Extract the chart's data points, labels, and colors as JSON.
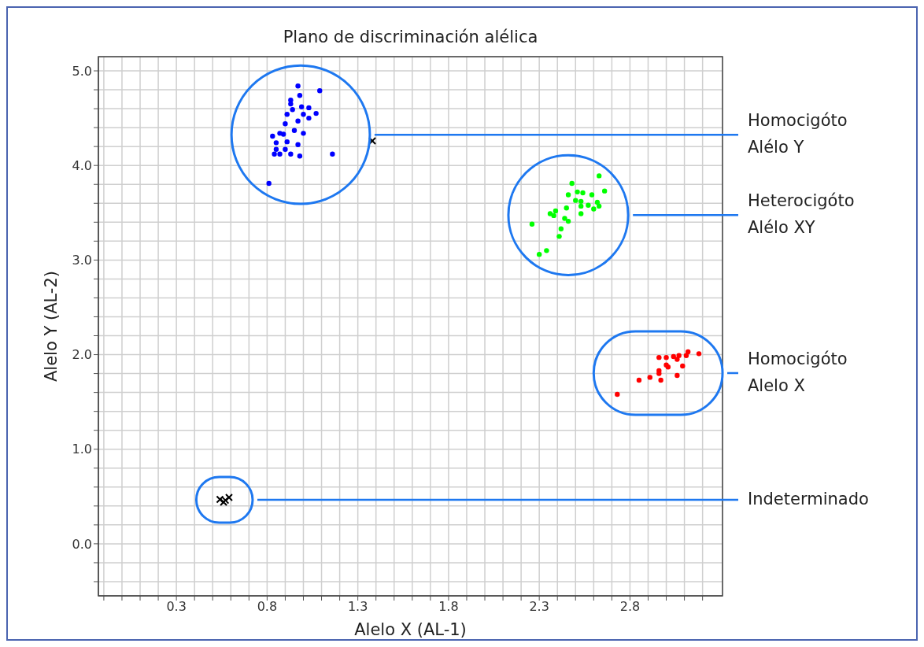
{
  "chart_data": {
    "type": "scatter",
    "title": "Plano de discriminación alélica",
    "xlabel": "Alelo X (AL-1)",
    "ylabel": "Alelo Y (AL-2)",
    "xlim": [
      -0.13,
      3.31
    ],
    "ylim": [
      -0.55,
      5.15
    ],
    "xticks": [
      {
        "value": -0.1,
        "label": null
      },
      {
        "value": 0,
        "label": null
      },
      {
        "value": 0.1,
        "label": null
      },
      {
        "value": 0.2,
        "label": null
      },
      0.3,
      {
        "value": 0.4,
        "label": null
      },
      {
        "value": 0.5,
        "label": null
      },
      {
        "value": 0.6,
        "label": null
      },
      {
        "value": 0.7,
        "label": null
      },
      0.8,
      {
        "value": 0.9,
        "label": null
      },
      {
        "value": 1.0,
        "label": null
      },
      {
        "value": 1.1,
        "label": null
      },
      {
        "value": 1.2,
        "label": null
      },
      1.3,
      {
        "value": 1.4,
        "label": null
      },
      {
        "value": 1.5,
        "label": null
      },
      {
        "value": 1.6,
        "label": null
      },
      {
        "value": 1.7,
        "label": null
      },
      1.8,
      {
        "value": 1.9,
        "label": null
      },
      {
        "value": 2.0,
        "label": null
      },
      {
        "value": 2.1,
        "label": null
      },
      {
        "value": 2.2,
        "label": null
      },
      2.3,
      {
        "value": 2.4,
        "label": null
      },
      {
        "value": 2.5,
        "label": null
      },
      {
        "value": 2.6,
        "label": null
      },
      {
        "value": 2.7,
        "label": null
      },
      2.8,
      {
        "value": 2.9,
        "label": null
      },
      {
        "value": 3.0,
        "label": null
      },
      {
        "value": 3.1,
        "label": null
      },
      {
        "value": 3.2,
        "label": null
      }
    ],
    "yticks": [
      {
        "value": -0.4,
        "label": null
      },
      {
        "value": -0.2,
        "label": null
      },
      {
        "value": 0,
        "label": "0.0"
      },
      {
        "value": 0.2,
        "label": null
      },
      {
        "value": 0.4,
        "label": null
      },
      {
        "value": 0.6,
        "label": null
      },
      {
        "value": 0.8,
        "label": null
      },
      {
        "value": 1,
        "label": "1.0"
      },
      {
        "value": 1.2,
        "label": null
      },
      {
        "value": 1.4,
        "label": null
      },
      {
        "value": 1.6,
        "label": null
      },
      {
        "value": 1.8,
        "label": null
      },
      {
        "value": 2,
        "label": "2.0"
      },
      {
        "value": 2.2,
        "label": null
      },
      {
        "value": 2.4,
        "label": null
      },
      {
        "value": 2.6,
        "label": null
      },
      {
        "value": 2.8,
        "label": null
      },
      {
        "value": 3,
        "label": "3.0"
      },
      {
        "value": 3.2,
        "label": null
      },
      {
        "value": 3.4,
        "label": null
      },
      {
        "value": 3.6,
        "label": null
      },
      {
        "value": 3.8,
        "label": null
      },
      {
        "value": 4,
        "label": "4.0"
      },
      {
        "value": 4.2,
        "label": null
      },
      {
        "value": 4.4,
        "label": null
      },
      {
        "value": 4.6,
        "label": null
      },
      {
        "value": 4.8,
        "label": null
      },
      {
        "value": 5,
        "label": "5.0"
      }
    ],
    "grid": true,
    "series": [
      {
        "color": "#0000ff",
        "marker": "circle",
        "x": [
          0.97,
          1.09,
          0.98,
          0.93,
          0.93,
          0.99,
          1.03,
          0.94,
          0.91,
          1.0,
          1.07,
          1.03,
          0.97,
          0.9,
          0.95,
          1.0,
          0.83,
          0.87,
          0.89,
          0.91,
          0.85,
          0.97,
          0.85,
          0.9,
          0.84,
          0.87,
          0.93,
          0.98,
          1.16,
          0.81
        ],
        "values": [
          4.84,
          4.79,
          4.74,
          4.69,
          4.65,
          4.62,
          4.61,
          4.59,
          4.54,
          4.54,
          4.55,
          4.5,
          4.47,
          4.44,
          4.37,
          4.34,
          4.31,
          4.34,
          4.33,
          4.25,
          4.24,
          4.22,
          4.17,
          4.17,
          4.12,
          4.12,
          4.12,
          4.1,
          4.12,
          3.81
        ]
      },
      {
        "color": "#00ff00",
        "marker": "circle",
        "x": [
          2.63,
          2.66,
          2.48,
          2.46,
          2.51,
          2.54,
          2.59,
          2.5,
          2.53,
          2.57,
          2.62,
          2.63,
          2.6,
          2.53,
          2.45,
          2.53,
          2.39,
          2.36,
          2.38,
          2.44,
          2.46,
          2.26,
          2.42,
          2.41,
          2.34,
          2.3
        ],
        "values": [
          3.89,
          3.73,
          3.81,
          3.69,
          3.72,
          3.71,
          3.69,
          3.63,
          3.62,
          3.58,
          3.61,
          3.57,
          3.54,
          3.57,
          3.55,
          3.49,
          3.52,
          3.49,
          3.47,
          3.44,
          3.41,
          3.38,
          3.33,
          3.25,
          3.1,
          3.06
        ]
      },
      {
        "color": "#ff0000",
        "marker": "circle",
        "x": [
          3.18,
          3.12,
          3.11,
          3.07,
          3.04,
          3.0,
          2.96,
          3.06,
          3.09,
          3.0,
          3.01,
          2.96,
          2.96,
          3.06,
          2.97,
          2.91,
          2.85,
          2.73
        ],
        "values": [
          2.01,
          2.03,
          1.99,
          1.99,
          1.98,
          1.97,
          1.97,
          1.95,
          1.88,
          1.89,
          1.87,
          1.83,
          1.8,
          1.78,
          1.73,
          1.76,
          1.73,
          1.58
        ]
      },
      {
        "color": "#000000",
        "marker": "cross",
        "x": [
          0.54,
          0.57,
          0.59,
          0.56
        ],
        "values": [
          0.47,
          0.46,
          0.49,
          0.44
        ]
      },
      {
        "color": "#000000",
        "marker": "cross",
        "x": [
          1.38
        ],
        "values": [
          4.26
        ]
      }
    ],
    "annotations": [
      "Homocigóto\nAlélo Y",
      "Heterocigóto\nAlélo XY",
      "Homocigóto\nAlelo X",
      "Indeterminado"
    ]
  }
}
